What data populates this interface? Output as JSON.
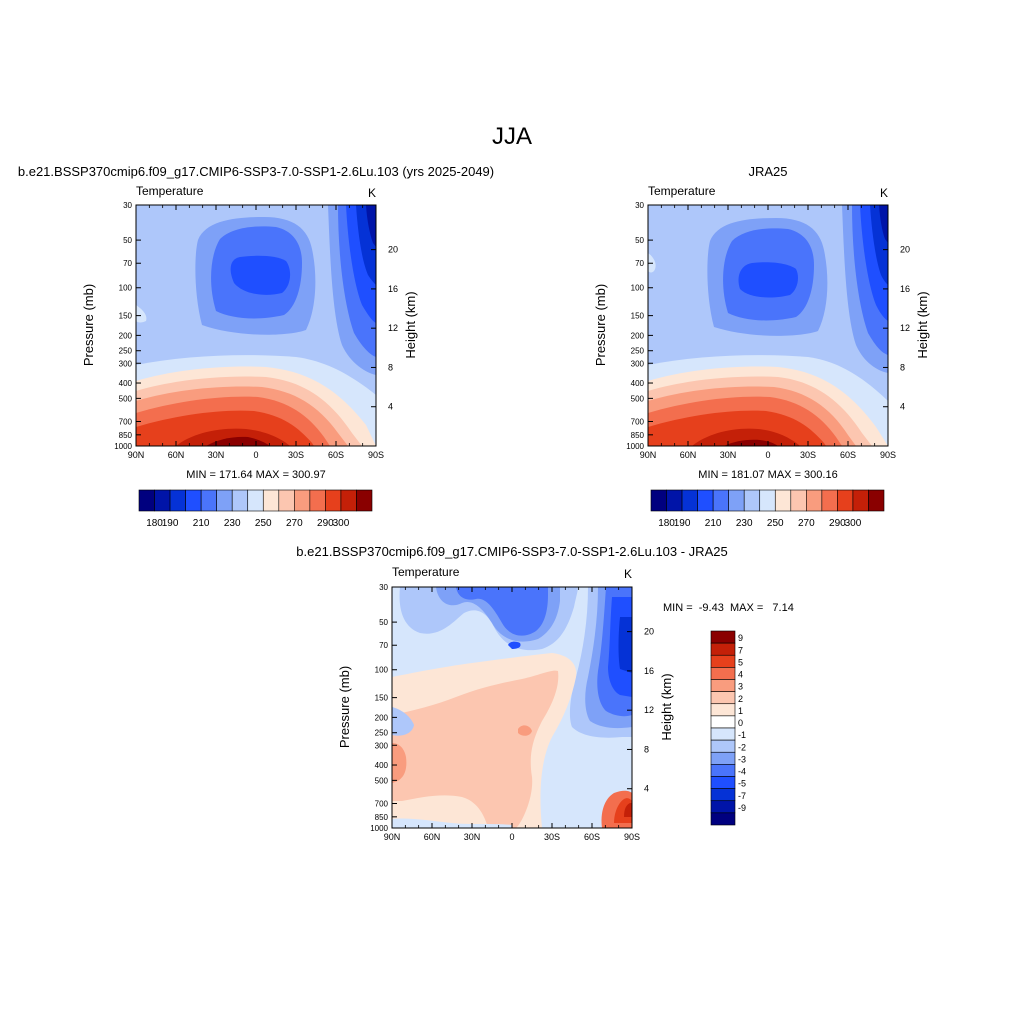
{
  "figure": {
    "title": "JJA"
  },
  "chart_data": [
    {
      "type": "heatmap",
      "id": "model",
      "title": "b.e21.BSSP370cmip6.f09_g17.CMIP6-SSP3-7.0-SSP1-2.6Lu.103 (yrs 2025-2049)",
      "left_label": "Temperature",
      "right_label": "K",
      "xlabel": "",
      "ylabel": "Pressure (mb)",
      "ylabel_right": "Height (km)",
      "x_ticks": [
        "90N",
        "60N",
        "30N",
        "0",
        "30S",
        "60S",
        "90S"
      ],
      "x_values": [
        90,
        60,
        30,
        0,
        -30,
        -60,
        -90
      ],
      "y_ticks": [
        "30",
        "50",
        "70",
        "100",
        "150",
        "200",
        "250",
        "300",
        "400",
        "500",
        "700",
        "850",
        "1000"
      ],
      "y_values": [
        30,
        50,
        70,
        100,
        150,
        200,
        250,
        300,
        400,
        500,
        700,
        850,
        1000
      ],
      "y_right_ticks": [
        "4",
        "8",
        "12",
        "16",
        "20"
      ],
      "y_right_values": [
        4,
        8,
        12,
        16,
        20
      ],
      "ylim": [
        1000,
        30
      ],
      "xlim": [
        90,
        -90
      ],
      "y_scale": "log",
      "stats": "MIN = 171.64  MAX = 300.97",
      "stats_values": {
        "min": 171.64,
        "max": 300.97
      },
      "colorbar": {
        "orientation": "horizontal",
        "labels": [
          "180",
          "190",
          "210",
          "230",
          "250",
          "270",
          "290",
          "300"
        ],
        "levels": [
          180,
          190,
          200,
          210,
          220,
          230,
          240,
          250,
          260,
          270,
          280,
          290,
          300
        ],
        "colors": [
          "#00007f",
          "#0014a8",
          "#0532d6",
          "#1f4fff",
          "#4a74fb",
          "#7ea1f7",
          "#aec7fa",
          "#d6e6fc",
          "#fde6d6",
          "#fcc6b0",
          "#f99c7e",
          "#f36e4e",
          "#e6401c",
          "#c42008",
          "#8a0000"
        ]
      }
    },
    {
      "type": "heatmap",
      "id": "obs",
      "title": "JRA25",
      "left_label": "Temperature",
      "right_label": "K",
      "xlabel": "",
      "ylabel": "Pressure (mb)",
      "ylabel_right": "Height (km)",
      "x_ticks": [
        "90N",
        "60N",
        "30N",
        "0",
        "30S",
        "60S",
        "90S"
      ],
      "x_values": [
        90,
        60,
        30,
        0,
        -30,
        -60,
        -90
      ],
      "y_ticks": [
        "30",
        "50",
        "70",
        "100",
        "150",
        "200",
        "250",
        "300",
        "400",
        "500",
        "700",
        "850",
        "1000"
      ],
      "y_values": [
        30,
        50,
        70,
        100,
        150,
        200,
        250,
        300,
        400,
        500,
        700,
        850,
        1000
      ],
      "y_right_ticks": [
        "4",
        "8",
        "12",
        "16",
        "20"
      ],
      "y_right_values": [
        4,
        8,
        12,
        16,
        20
      ],
      "ylim": [
        1000,
        30
      ],
      "xlim": [
        90,
        -90
      ],
      "y_scale": "log",
      "stats": "MIN = 181.07  MAX = 300.16",
      "stats_values": {
        "min": 181.07,
        "max": 300.16
      },
      "colorbar": {
        "orientation": "horizontal",
        "labels": [
          "180",
          "190",
          "210",
          "230",
          "250",
          "270",
          "290",
          "300"
        ],
        "levels": [
          180,
          190,
          200,
          210,
          220,
          230,
          240,
          250,
          260,
          270,
          280,
          290,
          300
        ],
        "colors": [
          "#00007f",
          "#0014a8",
          "#0532d6",
          "#1f4fff",
          "#4a74fb",
          "#7ea1f7",
          "#aec7fa",
          "#d6e6fc",
          "#fde6d6",
          "#fcc6b0",
          "#f99c7e",
          "#f36e4e",
          "#e6401c",
          "#c42008",
          "#8a0000"
        ]
      }
    },
    {
      "type": "heatmap",
      "id": "diff",
      "title": "b.e21.BSSP370cmip6.f09_g17.CMIP6-SSP3-7.0-SSP1-2.6Lu.103 - JRA25",
      "left_label": "Temperature",
      "right_label": "K",
      "xlabel": "",
      "ylabel": "Pressure (mb)",
      "ylabel_right": "Height (km)",
      "x_ticks": [
        "90N",
        "60N",
        "30N",
        "0",
        "30S",
        "60S",
        "90S"
      ],
      "x_values": [
        90,
        60,
        30,
        0,
        -30,
        -60,
        -90
      ],
      "y_ticks": [
        "30",
        "50",
        "70",
        "100",
        "150",
        "200",
        "250",
        "300",
        "400",
        "500",
        "700",
        "850",
        "1000"
      ],
      "y_values": [
        30,
        50,
        70,
        100,
        150,
        200,
        250,
        300,
        400,
        500,
        700,
        850,
        1000
      ],
      "y_right_ticks": [
        "4",
        "8",
        "12",
        "16",
        "20"
      ],
      "y_right_values": [
        4,
        8,
        12,
        16,
        20
      ],
      "ylim": [
        1000,
        30
      ],
      "xlim": [
        90,
        -90
      ],
      "y_scale": "log",
      "stats": "MIN =  -9.43  MAX =   7.14",
      "stats_values": {
        "min": -9.43,
        "max": 7.14
      },
      "colorbar": {
        "orientation": "vertical",
        "labels": [
          "9",
          "7",
          "5",
          "4",
          "3",
          "2",
          "1",
          "0",
          "-1",
          "-2",
          "-3",
          "-4",
          "-5",
          "-7",
          "-9"
        ],
        "levels": [
          9,
          7,
          5,
          4,
          3,
          2,
          1,
          0,
          -1,
          -2,
          -3,
          -4,
          -5,
          -7,
          -9
        ],
        "colors": [
          "#8a0000",
          "#c42008",
          "#e6401c",
          "#f36e4e",
          "#f99c7e",
          "#fcc6b0",
          "#fde6d6",
          "#ffffff",
          "#d6e6fc",
          "#aec7fa",
          "#7ea1f7",
          "#4a74fb",
          "#1f4fff",
          "#0532d6",
          "#0014a8",
          "#00007f"
        ]
      }
    }
  ]
}
